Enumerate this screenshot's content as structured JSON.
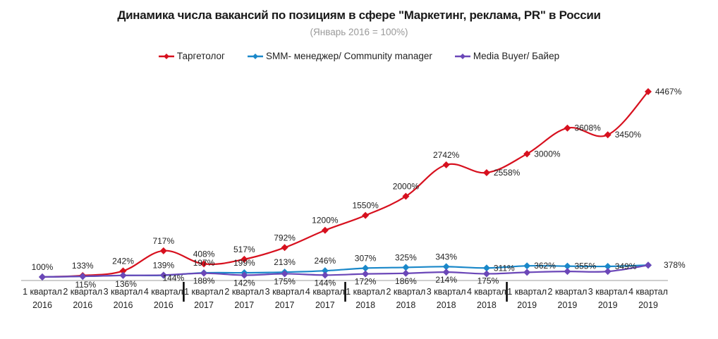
{
  "chart_data": {
    "type": "line",
    "title": "Динамика числа вакансий по позициям в сфере \"Маркетинг, реклама, PR\" в России",
    "subtitle": "(Январь 2016 = 100%)",
    "xlabel": "",
    "ylabel": "",
    "ylim": [
      0,
      4500
    ],
    "grid": false,
    "legend_position": "top-center",
    "categories": [
      [
        "1 квартал",
        "2016"
      ],
      [
        "2 квартал",
        "2016"
      ],
      [
        "3 квартал",
        "2016"
      ],
      [
        "4 квартал",
        "2016"
      ],
      [
        "1 квартал",
        "2017"
      ],
      [
        "2 квартал",
        "2017"
      ],
      [
        "3 квартал",
        "2017"
      ],
      [
        "4 квартал",
        "2017"
      ],
      [
        "1 квартал",
        "2018"
      ],
      [
        "2 квартал",
        "2018"
      ],
      [
        "3 квартал",
        "2018"
      ],
      [
        "4 квартал",
        "2018"
      ],
      [
        "1 квартал",
        "2019"
      ],
      [
        "2 квартал",
        "2019"
      ],
      [
        "3 квартал",
        "2019"
      ],
      [
        "4 квартал",
        "2019"
      ]
    ],
    "series": [
      {
        "name": "Таргетолог",
        "color": "#d7101e",
        "values": [
          100,
          133,
          242,
          717,
          408,
          517,
          792,
          1200,
          1550,
          2000,
          2742,
          2558,
          3000,
          3608,
          3450,
          4467
        ],
        "labels": [
          "",
          "133%",
          "242%",
          "717%",
          "408%",
          "517%",
          "792%",
          "1200%",
          "1550%",
          "2000%",
          "2742%",
          "2558%",
          "3000%",
          "3608%",
          "3450%",
          "4467%"
        ]
      },
      {
        "name": "SMM- менеджер/ Community manager",
        "color": "#1a88c9",
        "values": [
          100,
          115,
          136,
          139,
          197,
          199,
          213,
          246,
          307,
          325,
          343,
          311,
          362,
          355,
          349,
          378
        ],
        "labels": [
          "",
          "115%",
          "136%",
          "139%",
          "197%",
          "199%",
          "213%",
          "246%",
          "307%",
          "325%",
          "343%",
          "311%",
          "362%",
          "355%",
          "349%",
          "378%"
        ]
      },
      {
        "name": "Media Buyer/ Байер",
        "color": "#6b47b8",
        "values": [
          100,
          115,
          136,
          144,
          188,
          142,
          175,
          144,
          172,
          186,
          214,
          175,
          210,
          230,
          230,
          378
        ],
        "labels": [
          "100%",
          "",
          "",
          "144%",
          "188%",
          "142%",
          "175%",
          "144%",
          "172%",
          "186%",
          "214%",
          "175%",
          "",
          "",
          "",
          ""
        ]
      }
    ]
  }
}
